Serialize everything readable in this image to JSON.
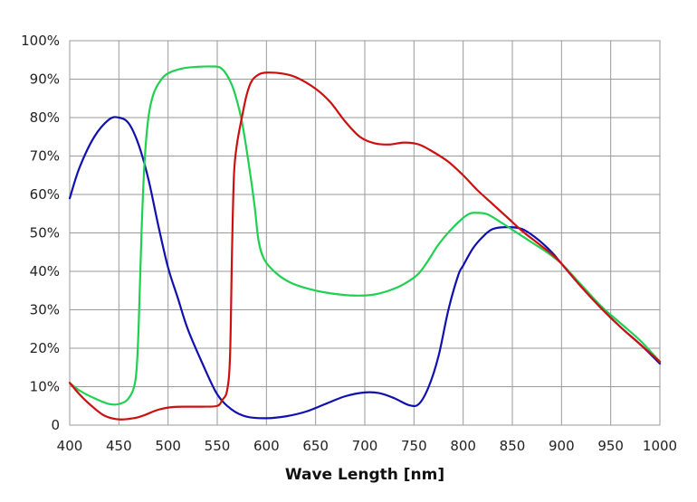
{
  "chart_data": {
    "type": "line",
    "title": "",
    "xlabel": "Wave Length [nm]",
    "ylabel": "",
    "xlim": [
      400,
      1000
    ],
    "ylim": [
      0,
      100
    ],
    "grid": true,
    "x_ticks": [
      "400",
      "450",
      "500",
      "550",
      "600",
      "650",
      "700",
      "750",
      "800",
      "850",
      "900",
      "950",
      "1000"
    ],
    "y_ticks": [
      "0",
      "10%",
      "20%",
      "30%",
      "40%",
      "50%",
      "60%",
      "70%",
      "80%",
      "90%",
      "100%"
    ],
    "x_tick_values": [
      400,
      450,
      500,
      550,
      600,
      650,
      700,
      750,
      800,
      850,
      900,
      950,
      1000
    ],
    "y_tick_values": [
      0,
      10,
      20,
      30,
      40,
      50,
      60,
      70,
      80,
      90,
      100
    ],
    "series": [
      {
        "color": "#1010b0",
        "points": [
          [
            400,
            59
          ],
          [
            410,
            67
          ],
          [
            425,
            75
          ],
          [
            440,
            79.5
          ],
          [
            450,
            80
          ],
          [
            460,
            78.5
          ],
          [
            470,
            73
          ],
          [
            480,
            64
          ],
          [
            490,
            52
          ],
          [
            500,
            41
          ],
          [
            510,
            33
          ],
          [
            520,
            25
          ],
          [
            535,
            16
          ],
          [
            550,
            8
          ],
          [
            565,
            4
          ],
          [
            580,
            2.2
          ],
          [
            600,
            1.8
          ],
          [
            620,
            2.3
          ],
          [
            640,
            3.5
          ],
          [
            660,
            5.5
          ],
          [
            680,
            7.5
          ],
          [
            700,
            8.5
          ],
          [
            715,
            8.3
          ],
          [
            730,
            7
          ],
          [
            745,
            5.2
          ],
          [
            755,
            5.5
          ],
          [
            765,
            10
          ],
          [
            775,
            18
          ],
          [
            785,
            30
          ],
          [
            795,
            39
          ],
          [
            800,
            41.5
          ],
          [
            810,
            46
          ],
          [
            820,
            49
          ],
          [
            830,
            51
          ],
          [
            845,
            51.5
          ],
          [
            860,
            51
          ],
          [
            875,
            48.5
          ],
          [
            890,
            45
          ],
          [
            900,
            42
          ],
          [
            920,
            36
          ],
          [
            940,
            30.5
          ],
          [
            960,
            25.5
          ],
          [
            980,
            21
          ],
          [
            1000,
            16
          ]
        ]
      },
      {
        "color": "#20d050",
        "points": [
          [
            400,
            11
          ],
          [
            410,
            9
          ],
          [
            425,
            7
          ],
          [
            440,
            5.5
          ],
          [
            450,
            5.5
          ],
          [
            460,
            7
          ],
          [
            467,
            12
          ],
          [
            470,
            25
          ],
          [
            473,
            50
          ],
          [
            476,
            68
          ],
          [
            480,
            80
          ],
          [
            485,
            86
          ],
          [
            492,
            89.5
          ],
          [
            500,
            91.5
          ],
          [
            515,
            92.8
          ],
          [
            530,
            93.2
          ],
          [
            545,
            93.3
          ],
          [
            553,
            93
          ],
          [
            560,
            91
          ],
          [
            567,
            87
          ],
          [
            575,
            79
          ],
          [
            582,
            68
          ],
          [
            588,
            57
          ],
          [
            592,
            48
          ],
          [
            598,
            43
          ],
          [
            610,
            39.5
          ],
          [
            625,
            37
          ],
          [
            645,
            35.3
          ],
          [
            665,
            34.3
          ],
          [
            690,
            33.7
          ],
          [
            710,
            34
          ],
          [
            730,
            35.5
          ],
          [
            745,
            37.5
          ],
          [
            755,
            39.5
          ],
          [
            765,
            43
          ],
          [
            775,
            47
          ],
          [
            790,
            51.5
          ],
          [
            805,
            54.8
          ],
          [
            815,
            55.2
          ],
          [
            825,
            54.8
          ],
          [
            840,
            52.5
          ],
          [
            855,
            50
          ],
          [
            870,
            47.5
          ],
          [
            885,
            45
          ],
          [
            900,
            42
          ],
          [
            920,
            36.5
          ],
          [
            940,
            31
          ],
          [
            960,
            26.5
          ],
          [
            980,
            22
          ],
          [
            1000,
            16.5
          ]
        ]
      },
      {
        "color": "#cc1010",
        "points": [
          [
            400,
            11
          ],
          [
            410,
            8
          ],
          [
            420,
            5.5
          ],
          [
            435,
            2.5
          ],
          [
            450,
            1.5
          ],
          [
            465,
            1.8
          ],
          [
            475,
            2.5
          ],
          [
            490,
            4
          ],
          [
            505,
            4.7
          ],
          [
            520,
            4.8
          ],
          [
            535,
            4.8
          ],
          [
            550,
            5
          ],
          [
            555,
            6.5
          ],
          [
            560,
            9
          ],
          [
            563,
            18
          ],
          [
            565,
            45
          ],
          [
            567,
            65
          ],
          [
            570,
            73
          ],
          [
            575,
            80
          ],
          [
            580,
            86
          ],
          [
            585,
            89.5
          ],
          [
            592,
            91.2
          ],
          [
            600,
            91.7
          ],
          [
            615,
            91.5
          ],
          [
            630,
            90.5
          ],
          [
            650,
            87.5
          ],
          [
            665,
            84
          ],
          [
            680,
            79
          ],
          [
            695,
            75
          ],
          [
            710,
            73.3
          ],
          [
            725,
            73
          ],
          [
            740,
            73.5
          ],
          [
            755,
            73
          ],
          [
            770,
            71
          ],
          [
            785,
            68.5
          ],
          [
            800,
            65
          ],
          [
            815,
            61
          ],
          [
            830,
            57.5
          ],
          [
            845,
            54
          ],
          [
            860,
            50.5
          ],
          [
            875,
            47.5
          ],
          [
            890,
            44.5
          ],
          [
            900,
            42
          ],
          [
            920,
            36
          ],
          [
            940,
            30.5
          ],
          [
            960,
            25.5
          ],
          [
            980,
            21
          ],
          [
            1000,
            16.5
          ]
        ]
      }
    ]
  }
}
